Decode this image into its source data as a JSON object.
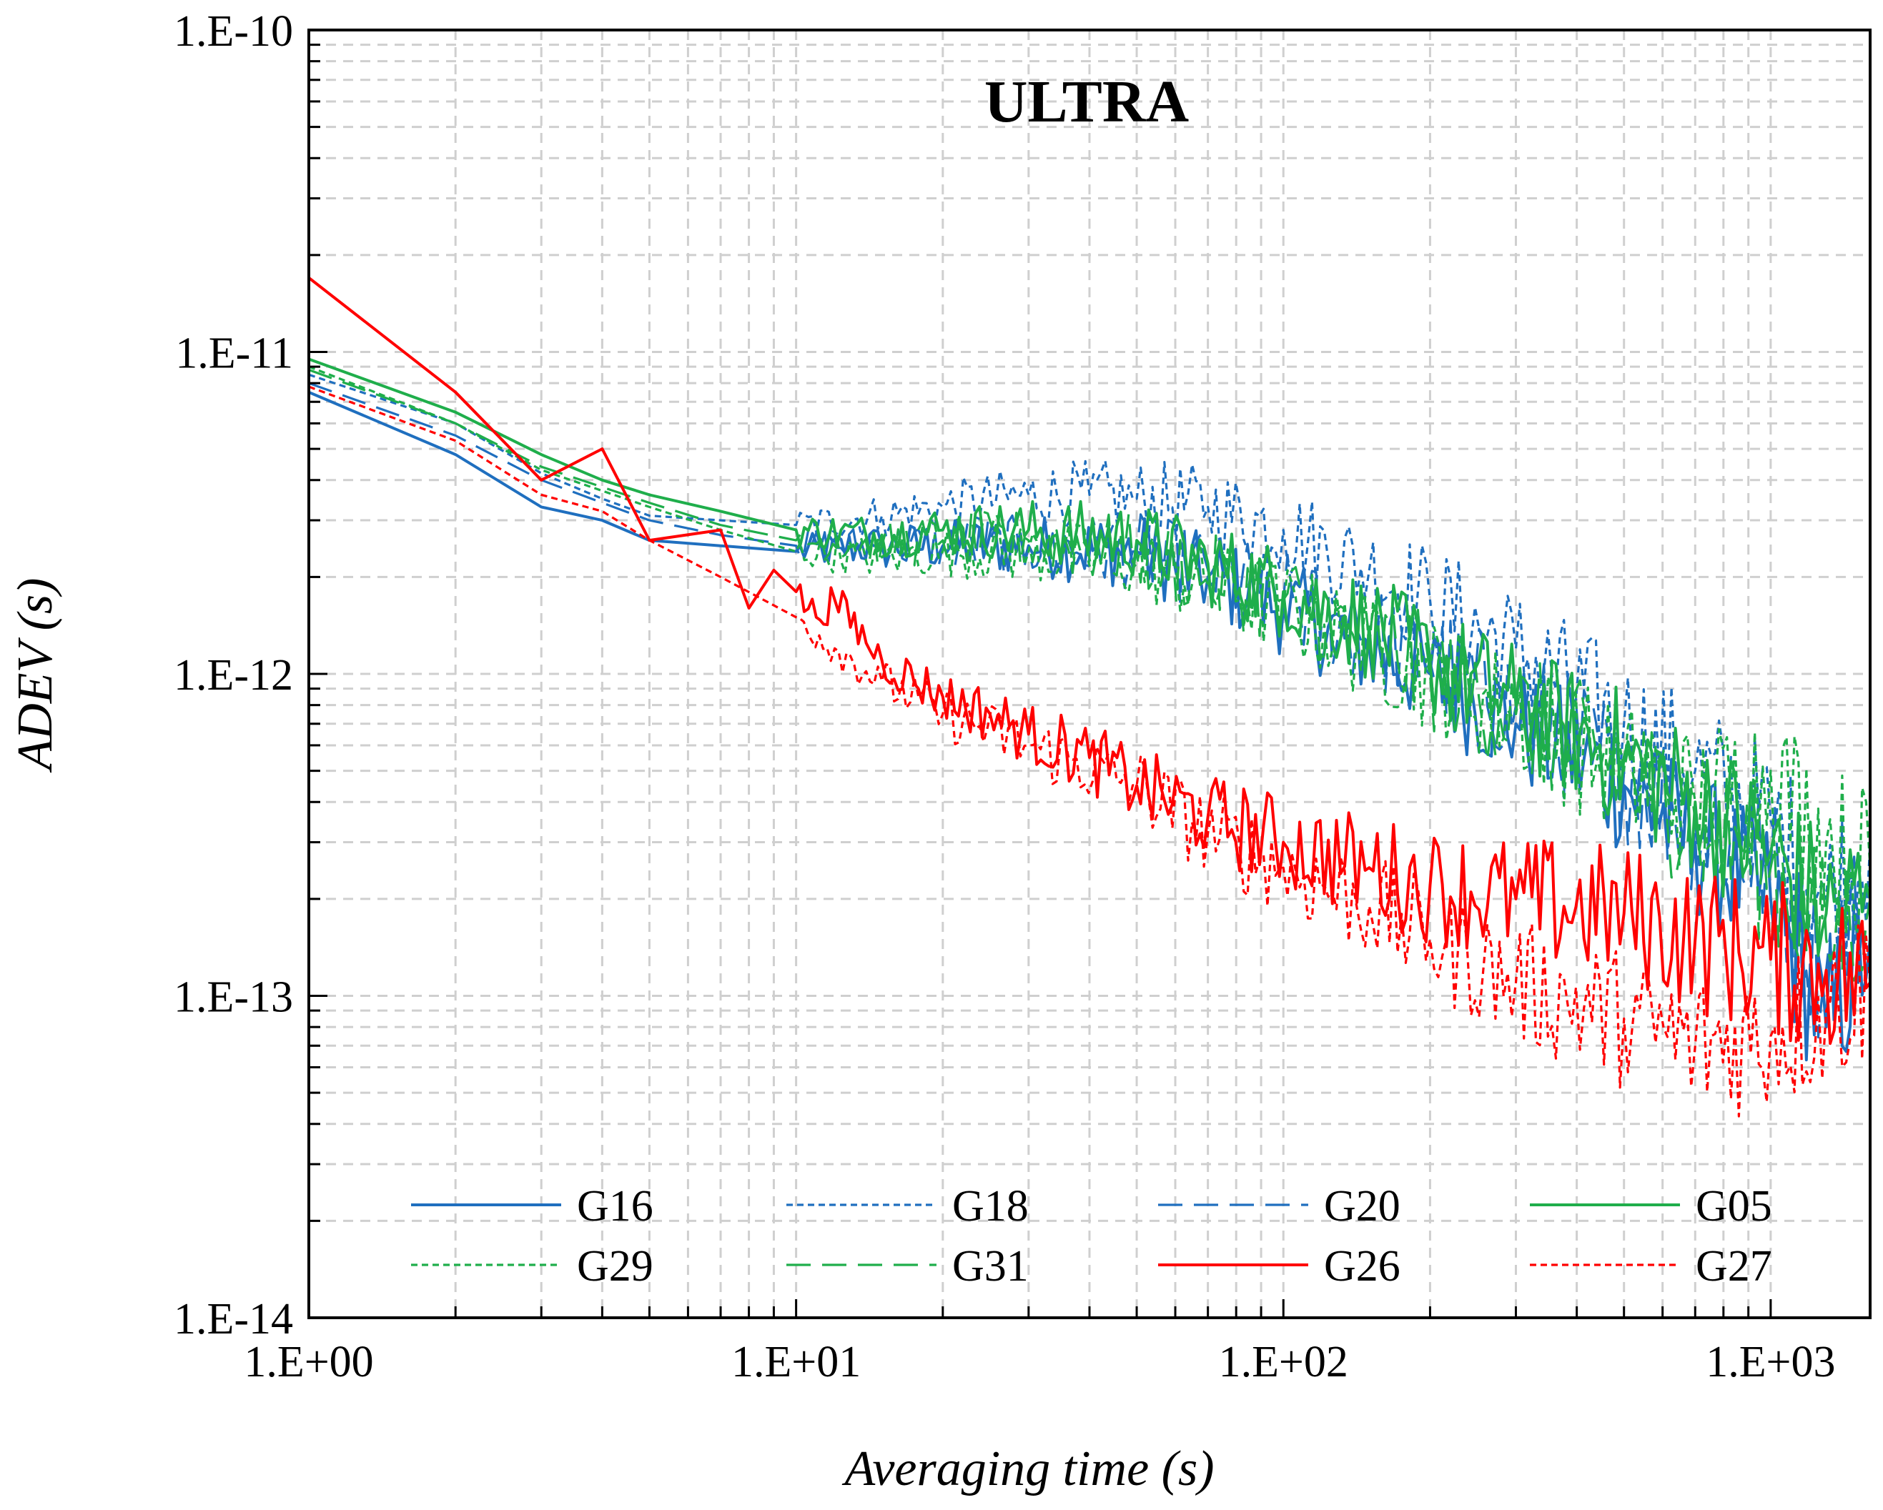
{
  "chart_data": {
    "type": "line",
    "title": "ULTRA",
    "xlabel": "Averaging time (s)",
    "ylabel": "ADEV (s)",
    "xscale": "log",
    "yscale": "log",
    "xlim": [
      1,
      1600
    ],
    "ylim": [
      1e-14,
      1e-10
    ],
    "xticks": [
      1,
      10,
      100,
      1000
    ],
    "xtick_labels": [
      "1.E+00",
      "1.E+01",
      "1.E+02",
      "1.E+03"
    ],
    "yticks": [
      1e-14,
      1e-13,
      1e-12,
      1e-11,
      1e-10
    ],
    "ytick_labels": [
      "1.E-14",
      "1.E-13",
      "1.E-12",
      "1.E-11",
      "1.E-10"
    ],
    "grid": true,
    "legend_position": "bottom",
    "series": [
      {
        "name": "G16",
        "color": "#1f6fbf",
        "dash": "solid",
        "x": [
          1,
          2,
          3,
          4,
          5,
          7,
          10,
          15,
          20,
          30,
          50,
          70,
          100,
          150,
          200,
          300,
          500,
          700,
          1000,
          1300,
          1600
        ],
        "y": [
          7.5e-12,
          4.8e-12,
          3.3e-12,
          3e-12,
          2.6e-12,
          2.5e-12,
          2.4e-12,
          2.5e-12,
          2.5e-12,
          2.5e-12,
          2.4e-12,
          2e-12,
          1.6e-12,
          1.2e-12,
          1e-12,
          7e-13,
          4.5e-13,
          3e-13,
          2e-13,
          8e-14,
          1.5e-13
        ]
      },
      {
        "name": "G18",
        "color": "#1f6fbf",
        "dash": "dotted",
        "x": [
          1,
          2,
          3,
          4,
          5,
          7,
          10,
          15,
          20,
          30,
          40,
          50,
          70,
          100,
          150,
          200,
          300,
          500,
          700,
          1000,
          1300,
          1600
        ],
        "y": [
          8.5e-12,
          6e-12,
          4.2e-12,
          3.5e-12,
          3.1e-12,
          3e-12,
          2.9e-12,
          3.1e-12,
          3.3e-12,
          3.6e-12,
          3.6e-12,
          3.5e-12,
          3.3e-12,
          2.8e-12,
          2.1e-12,
          1.7e-12,
          1.2e-12,
          7e-13,
          5e-13,
          3.5e-13,
          2e-13,
          3e-13
        ]
      },
      {
        "name": "G20",
        "color": "#1f6fbf",
        "dash": "dashed",
        "x": [
          1,
          2,
          3,
          5,
          7,
          10,
          15,
          20,
          30,
          50,
          70,
          100,
          150,
          200,
          300,
          500,
          700,
          1000,
          1300,
          1600
        ],
        "y": [
          8e-12,
          5.5e-12,
          4e-12,
          3e-12,
          2.7e-12,
          2.5e-12,
          2.5e-12,
          2.5e-12,
          2.5e-12,
          2.4e-12,
          2.1e-12,
          1.7e-12,
          1.3e-12,
          1.1e-12,
          8e-13,
          5e-13,
          3.5e-13,
          2.5e-13,
          1.2e-13,
          2e-13
        ]
      },
      {
        "name": "G05",
        "color": "#1fae4b",
        "dash": "solid",
        "x": [
          1,
          2,
          3,
          4,
          5,
          7,
          10,
          15,
          20,
          30,
          50,
          70,
          100,
          150,
          200,
          300,
          500,
          700,
          1000,
          1300,
          1600
        ],
        "y": [
          9.5e-12,
          6.5e-12,
          4.8e-12,
          4e-12,
          3.6e-12,
          3.2e-12,
          2.8e-12,
          2.7e-12,
          2.8e-12,
          2.8e-12,
          2.6e-12,
          2.2e-12,
          1.8e-12,
          1.4e-12,
          1.1e-12,
          8e-13,
          5.5e-13,
          4e-13,
          2.8e-13,
          1.8e-13,
          2e-13
        ]
      },
      {
        "name": "G29",
        "color": "#1fae4b",
        "dash": "dotted",
        "x": [
          1,
          2,
          3,
          5,
          7,
          10,
          15,
          20,
          30,
          50,
          70,
          100,
          150,
          200,
          300,
          500,
          700,
          1000,
          1300,
          1600
        ],
        "y": [
          9e-12,
          6e-12,
          4.3e-12,
          3.3e-12,
          2.8e-12,
          2.4e-12,
          2.3e-12,
          2.4e-12,
          2.4e-12,
          2.2e-12,
          1.9e-12,
          1.6e-12,
          1.2e-12,
          1e-12,
          7.5e-13,
          5e-13,
          4e-13,
          5e-13,
          3e-13,
          2.5e-13
        ]
      },
      {
        "name": "G31",
        "color": "#1fae4b",
        "dash": "dashed",
        "x": [
          1,
          2,
          3,
          5,
          7,
          10,
          15,
          20,
          30,
          50,
          70,
          100,
          150,
          200,
          300,
          500,
          700,
          1000,
          1300,
          1600
        ],
        "y": [
          8.8e-12,
          6e-12,
          4.4e-12,
          3.4e-12,
          2.9e-12,
          2.6e-12,
          2.5e-12,
          2.6e-12,
          2.6e-12,
          2.4e-12,
          2e-12,
          1.7e-12,
          1.3e-12,
          1e-12,
          7.5e-13,
          5e-13,
          3.5e-13,
          2.5e-13,
          1.5e-13,
          2e-13
        ]
      },
      {
        "name": "G26",
        "color": "#ff0000",
        "dash": "solid",
        "x": [
          1,
          2,
          3,
          4,
          5,
          7,
          8,
          9,
          10,
          11,
          12,
          15,
          20,
          25,
          30,
          40,
          50,
          70,
          100,
          150,
          200,
          300,
          500,
          700,
          1000,
          1300,
          1600
        ],
        "y": [
          1.7e-11,
          7.5e-12,
          4e-12,
          5e-12,
          2.6e-12,
          2.8e-12,
          1.6e-12,
          2.1e-12,
          1.8e-12,
          1.5e-12,
          1.7e-12,
          1.1e-12,
          8.5e-13,
          7.5e-13,
          6.5e-13,
          5.5e-13,
          4.5e-13,
          3.6e-13,
          3e-13,
          2.5e-13,
          2.2e-13,
          2e-13,
          1.8e-13,
          1.5e-13,
          1.3e-13,
          1.2e-13,
          1.1e-13
        ]
      },
      {
        "name": "G27",
        "color": "#ff0000",
        "dash": "dotted",
        "x": [
          1,
          2,
          3,
          4,
          5,
          7,
          10,
          12,
          15,
          20,
          30,
          50,
          70,
          100,
          150,
          200,
          300,
          500,
          700,
          1000,
          1300,
          1600
        ],
        "y": [
          7.8e-12,
          5.3e-12,
          3.6e-12,
          3.2e-12,
          2.6e-12,
          2e-12,
          1.5e-12,
          1.2e-12,
          9.5e-13,
          7.5e-13,
          6e-13,
          4.5e-13,
          3.2e-13,
          2.5e-13,
          1.9e-13,
          1.5e-13,
          1.1e-13,
          8.5e-14,
          7e-14,
          7.5e-14,
          9e-14,
          1.1e-13
        ]
      }
    ]
  }
}
